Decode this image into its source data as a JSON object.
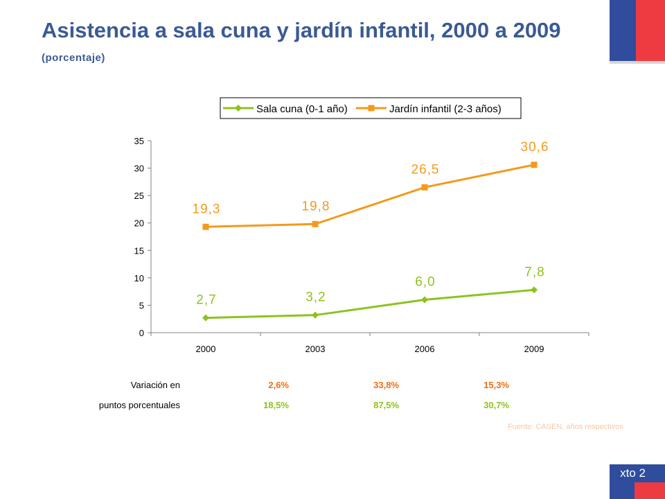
{
  "page": {
    "title": "Asistencia a sala cuna y jardín infantil, 2000 a 2009",
    "subtitle": "(porcentaje)",
    "source": "Fuente: CASEN, años respectivos",
    "footer_label": "xto 2"
  },
  "colors": {
    "title": "#3a5a94",
    "sala_cuna": "#8dc21f",
    "jardin": "#f39a1c",
    "variation_top": "#ef6d13",
    "variation_bottom": "#8dc21f",
    "flag_blue": "#2f4d9c",
    "flag_red": "#ee3b42"
  },
  "chart_data": {
    "type": "line",
    "categories": [
      "2000",
      "2003",
      "2006",
      "2009"
    ],
    "series": [
      {
        "name": "Sala cuna (0-1 año)",
        "values": [
          2.7,
          3.2,
          6.0,
          7.8
        ],
        "labels": [
          "2,7",
          "3,2",
          "6,0",
          "7,8"
        ],
        "marker": "diamond"
      },
      {
        "name": "Jardín infantil (2-3 años)",
        "values": [
          19.3,
          19.8,
          26.5,
          30.6
        ],
        "labels": [
          "19,3",
          "19,8",
          "26,5",
          "30,6"
        ],
        "marker": "square"
      }
    ],
    "ylim": [
      0,
      35
    ],
    "yticks": [
      "0",
      "5",
      "10",
      "15",
      "20",
      "25",
      "30",
      "35"
    ],
    "legend": "top",
    "grid": false
  },
  "variation": {
    "label_line1": "Variación en",
    "label_line2": "puntos porcentuales",
    "row1": [
      "2,6%",
      "33,8%",
      "15,3%"
    ],
    "row2": [
      "18,5%",
      "87,5%",
      "30,7%"
    ]
  }
}
